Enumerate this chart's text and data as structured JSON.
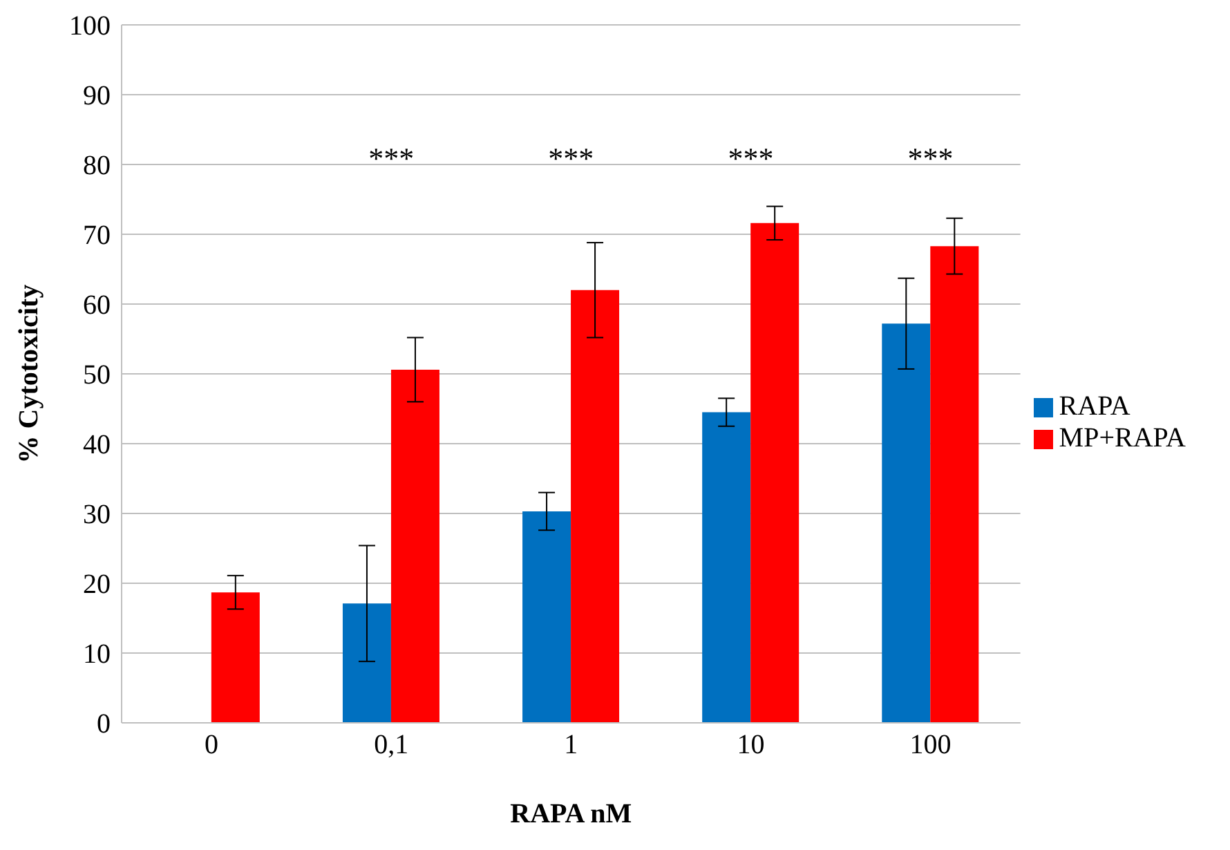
{
  "chart_data": {
    "type": "bar",
    "xlabel": "RAPA nM",
    "ylabel": "% Cytotoxicity",
    "categories": [
      "0",
      "0,1",
      "1",
      "10",
      "100"
    ],
    "series": [
      {
        "name": "RAPA",
        "color": "#0070c0",
        "values": [
          null,
          17.1,
          30.3,
          44.5,
          57.2
        ],
        "errors": [
          null,
          8.3,
          2.7,
          2,
          6.5
        ]
      },
      {
        "name": "MP+RAPA",
        "color": "#ff0000",
        "values": [
          18.7,
          50.6,
          62,
          71.6,
          68.3
        ],
        "errors": [
          2.4,
          4.6,
          6.8,
          2.4,
          4
        ]
      }
    ],
    "ylim": [
      0,
      100
    ],
    "yticks": [
      0,
      10,
      20,
      30,
      40,
      50,
      60,
      70,
      80,
      90,
      100
    ],
    "grid": "y",
    "legend": "right",
    "annotations": [
      "***",
      "***",
      "***",
      "***"
    ]
  }
}
